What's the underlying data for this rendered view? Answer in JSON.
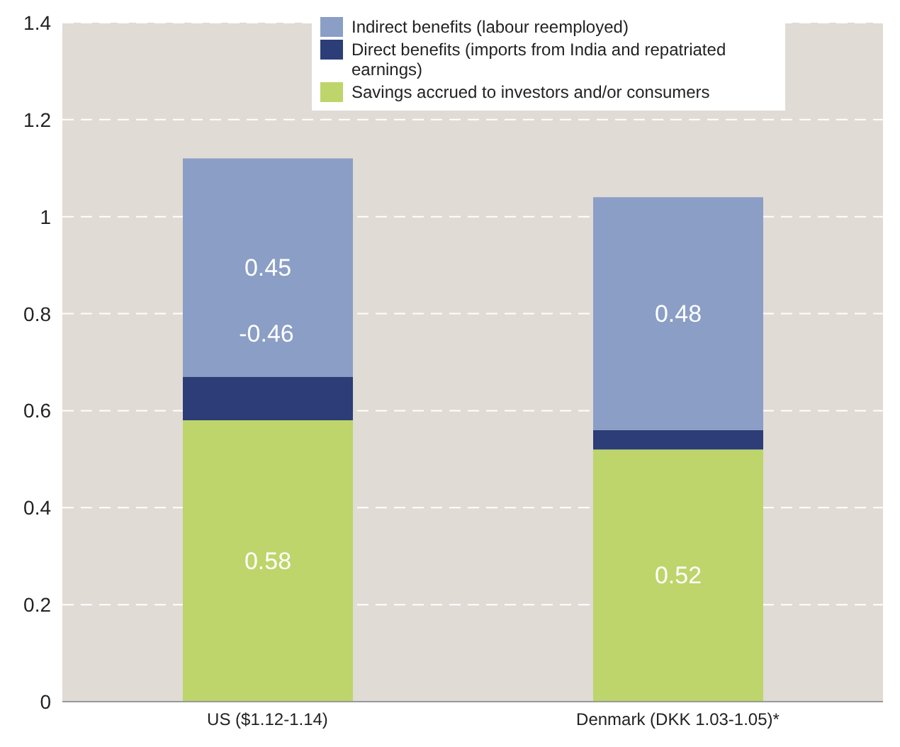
{
  "chart_data": {
    "type": "bar",
    "stacked": true,
    "categories": [
      "US ($1.12-1.14)",
      "Denmark (DKK 1.03-1.05)*"
    ],
    "series": [
      {
        "name": "Savings accrued to investors and/or consumers",
        "color": "#bdd56a",
        "values": [
          0.58,
          0.52
        ],
        "value_labels": [
          "0.58",
          "0.52"
        ]
      },
      {
        "name": "Direct benefits (imports from India and repatriated earnings)",
        "color": "#2c3d78",
        "values": [
          0.09,
          0.04
        ],
        "value_labels": [
          null,
          null
        ]
      },
      {
        "name": "Indirect benefits (labour reemployed)",
        "color": "#8a9ec6",
        "values": [
          0.45,
          0.48
        ],
        "value_labels": [
          "0.45",
          "0.48"
        ]
      }
    ],
    "ylim": [
      0,
      1.4
    ],
    "yticks": [
      0,
      0.2,
      0.4,
      0.6,
      0.8,
      1,
      1.2,
      1.4
    ],
    "grid": "y",
    "legend": "top",
    "annotations": [
      "-0.46"
    ]
  }
}
